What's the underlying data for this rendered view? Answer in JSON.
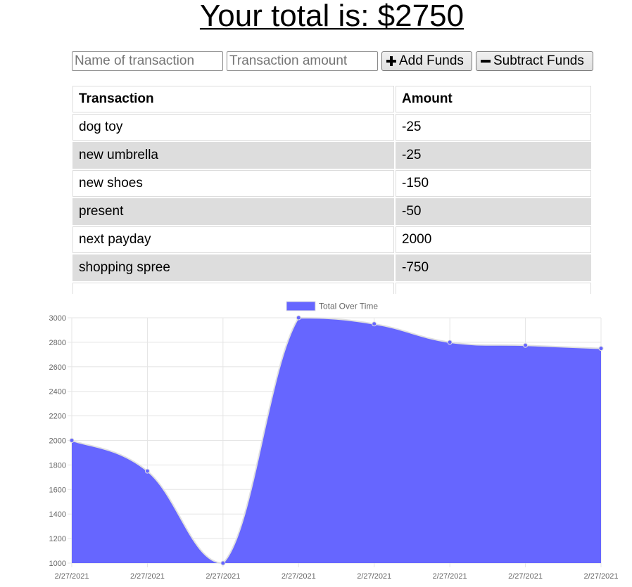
{
  "header": {
    "total_text": "Your total is: $2750"
  },
  "form": {
    "name_placeholder": "Name of transaction",
    "amount_placeholder": "Transaction amount",
    "name_value": "",
    "amount_value": "",
    "add_label": "Add Funds",
    "subtract_label": "Subtract Funds"
  },
  "table": {
    "columns": [
      "Transaction",
      "Amount"
    ],
    "rows": [
      {
        "name": "dog toy",
        "amount": "-25"
      },
      {
        "name": "new umbrella",
        "amount": "-25"
      },
      {
        "name": "new shoes",
        "amount": "-150"
      },
      {
        "name": "present",
        "amount": "-50"
      },
      {
        "name": "next payday",
        "amount": "2000"
      },
      {
        "name": "shopping spree",
        "amount": "-750"
      }
    ]
  },
  "chart_data": {
    "type": "area",
    "legend": "top",
    "grid": true,
    "fill_color": "#6666ff",
    "line_color": "#e0e0e0",
    "x": [
      "2/27/2021",
      "2/27/2021",
      "2/27/2021",
      "2/27/2021",
      "2/27/2021",
      "2/27/2021",
      "2/27/2021",
      "2/27/2021"
    ],
    "series": [
      {
        "name": "Total Over Time",
        "values": [
          2000,
          1750,
          1000,
          3000,
          2950,
          2800,
          2775,
          2750
        ]
      }
    ],
    "ylim": [
      1000,
      3000
    ],
    "yticks": [
      1000,
      1200,
      1400,
      1600,
      1800,
      2000,
      2200,
      2400,
      2600,
      2800,
      3000
    ]
  }
}
